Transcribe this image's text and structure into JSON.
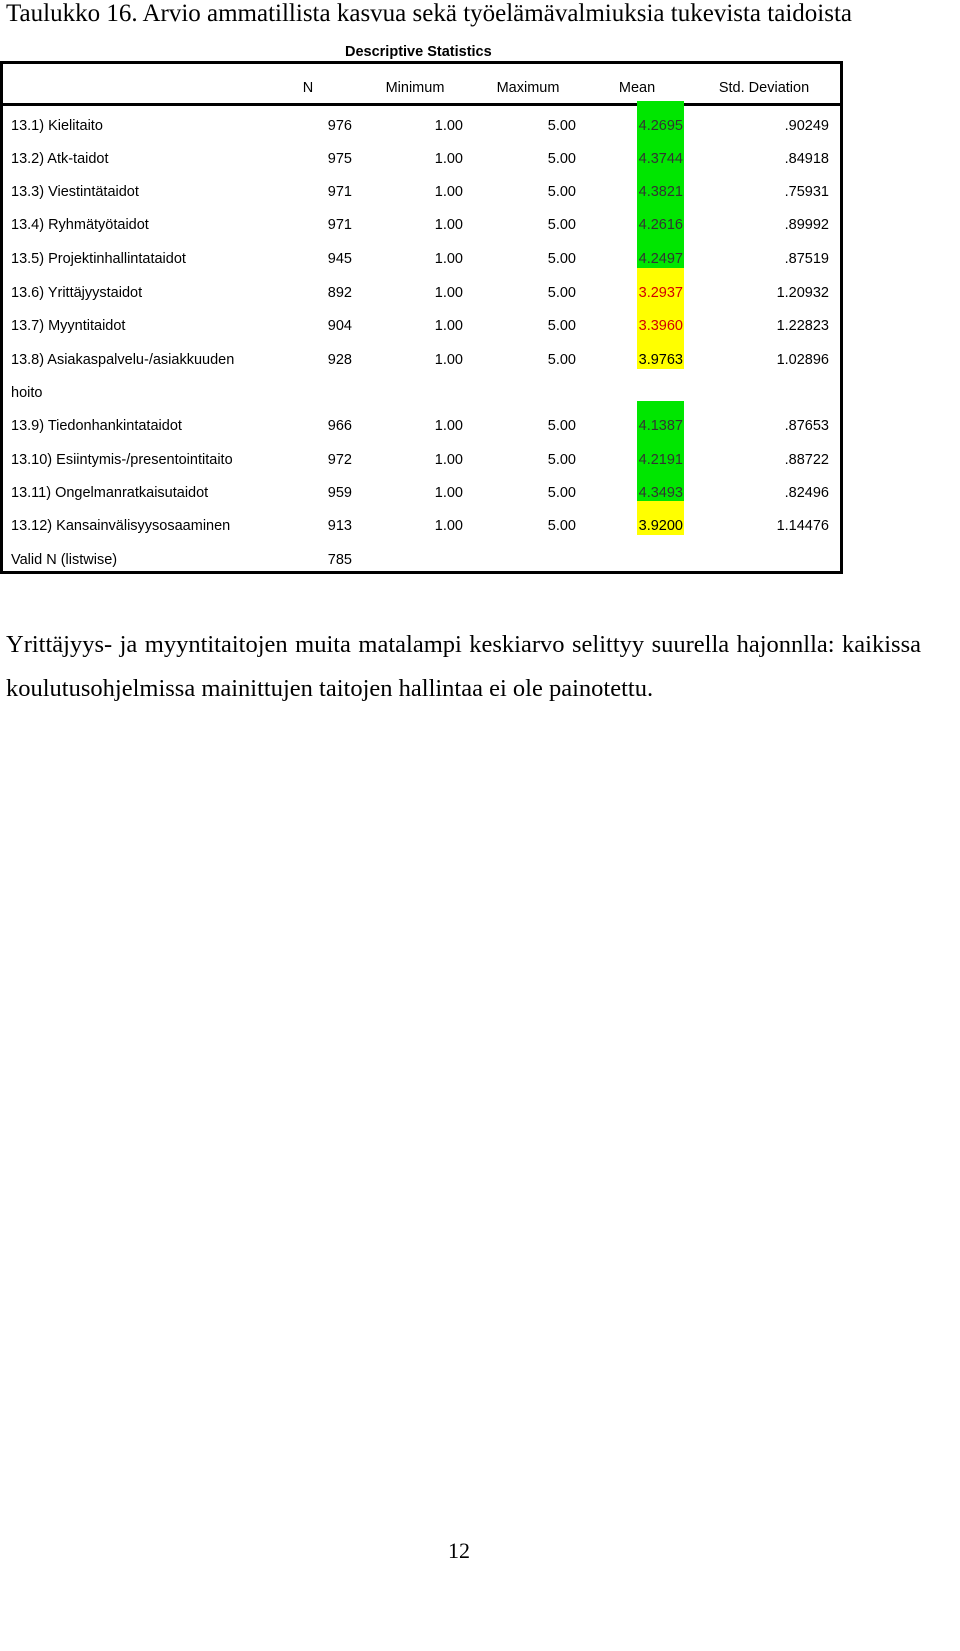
{
  "heading": "Taulukko 16. Arvio ammatillista kasvua sekä työelämävalmiuksia tukevista taidoista",
  "table": {
    "caption": "Descriptive Statistics",
    "columns": [
      "N",
      "Minimum",
      "Maximum",
      "Mean",
      "Std. Deviation"
    ],
    "rows": [
      {
        "label": "13.1) Kielitaito",
        "n": "976",
        "min": "1.00",
        "max": "5.00",
        "mean": "4.2695",
        "sd": ".90249",
        "highlight": "#00e600",
        "mean_color": "#333333"
      },
      {
        "label": "13.2) Atk-taidot",
        "n": "975",
        "min": "1.00",
        "max": "5.00",
        "mean": "4.3744",
        "sd": ".84918",
        "highlight": "#00e600",
        "mean_color": "#333333"
      },
      {
        "label": "13.3) Viestintätaidot",
        "n": "971",
        "min": "1.00",
        "max": "5.00",
        "mean": "4.3821",
        "sd": ".75931",
        "highlight": "#00e600",
        "mean_color": "#333333"
      },
      {
        "label": "13.4) Ryhmätyötaidot",
        "n": "971",
        "min": "1.00",
        "max": "5.00",
        "mean": "4.2616",
        "sd": ".89992",
        "highlight": "#00e600",
        "mean_color": "#333333"
      },
      {
        "label": "13.5) Projektinhallintataidot",
        "n": "945",
        "min": "1.00",
        "max": "5.00",
        "mean": "4.2497",
        "sd": ".87519",
        "highlight": "#00e600",
        "mean_color": "#333333"
      },
      {
        "label": "13.6) Yrittäjyystaidot",
        "n": "892",
        "min": "1.00",
        "max": "5.00",
        "mean": "3.2937",
        "sd": "1.20932",
        "highlight": "#ffff00",
        "mean_color": "#d40000"
      },
      {
        "label": "13.7) Myyntitaidot",
        "n": "904",
        "min": "1.00",
        "max": "5.00",
        "mean": "3.3960",
        "sd": "1.22823",
        "highlight": "#ffff00",
        "mean_color": "#d40000"
      },
      {
        "label": "13.8) Asiakaspalvelu-/asiakkuuden",
        "label_cont": "hoito",
        "n": "928",
        "min": "1.00",
        "max": "5.00",
        "mean": "3.9763",
        "sd": "1.02896",
        "highlight": "#ffff00",
        "mean_color": "#000000"
      },
      {
        "label": "13.9) Tiedonhankintataidot",
        "n": "966",
        "min": "1.00",
        "max": "5.00",
        "mean": "4.1387",
        "sd": ".87653",
        "highlight": "#00e600",
        "mean_color": "#333333"
      },
      {
        "label": "13.10) Esiintymis-/presentointitaito",
        "n": "972",
        "min": "1.00",
        "max": "5.00",
        "mean": "4.2191",
        "sd": ".88722",
        "highlight": "#00e600",
        "mean_color": "#333333"
      },
      {
        "label": "13.11) Ongelmanratkaisutaidot",
        "n": "959",
        "min": "1.00",
        "max": "5.00",
        "mean": "4.3493",
        "sd": ".82496",
        "highlight": "#00e600",
        "mean_color": "#333333"
      },
      {
        "label": "13.12) Kansainvälisyysosaaminen",
        "n": "913",
        "min": "1.00",
        "max": "5.00",
        "mean": "3.9200",
        "sd": "1.14476",
        "highlight": "#ffff00",
        "mean_color": "#000000"
      },
      {
        "label": "Valid N (listwise)",
        "n": "785",
        "min": "",
        "max": "",
        "mean": "",
        "sd": "",
        "highlight": "",
        "mean_color": "#000000"
      }
    ]
  },
  "note": "Yrittäjyys- ja myyntitaitojen muita matalampi keskiarvo selittyy suurella hajonnlla: kaikissa koulutusohjelmissa mainittujen taitojen hallintaa ei ole painotettu.",
  "page_number": "12"
}
